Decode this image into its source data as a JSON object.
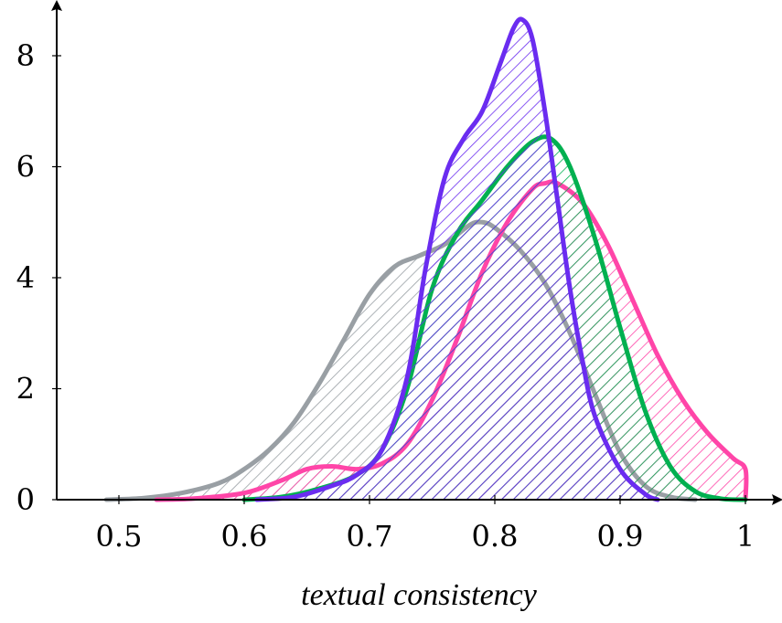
{
  "chart_data": {
    "type": "area",
    "title": "",
    "xlabel": "textual consistency",
    "ylabel": "",
    "xlim": [
      0.45,
      1.03
    ],
    "ylim": [
      0,
      8.9
    ],
    "x_ticks": [
      0.5,
      0.6,
      0.7,
      0.8,
      0.9,
      1.0
    ],
    "x_tick_labels": [
      "0.5",
      "0.6",
      "0.7",
      "0.8",
      "0.9",
      "1"
    ],
    "y_ticks": [
      0,
      2,
      4,
      6,
      8
    ],
    "y_tick_labels": [
      "0",
      "2",
      "4",
      "6",
      "8"
    ],
    "grid": false,
    "legend": "none",
    "series": [
      {
        "color": "#999fa4",
        "points": [
          [
            0.49,
            0
          ],
          [
            0.52,
            0.03
          ],
          [
            0.55,
            0.12
          ],
          [
            0.58,
            0.3
          ],
          [
            0.6,
            0.55
          ],
          [
            0.62,
            0.9
          ],
          [
            0.64,
            1.4
          ],
          [
            0.66,
            2.1
          ],
          [
            0.68,
            2.9
          ],
          [
            0.7,
            3.7
          ],
          [
            0.72,
            4.2
          ],
          [
            0.74,
            4.4
          ],
          [
            0.76,
            4.6
          ],
          [
            0.78,
            4.95
          ],
          [
            0.79,
            5.0
          ],
          [
            0.8,
            4.9
          ],
          [
            0.82,
            4.5
          ],
          [
            0.84,
            3.9
          ],
          [
            0.86,
            3.0
          ],
          [
            0.88,
            1.9
          ],
          [
            0.9,
            0.85
          ],
          [
            0.92,
            0.25
          ],
          [
            0.94,
            0.05
          ],
          [
            0.96,
            0
          ]
        ]
      },
      {
        "color": "#ff45a8",
        "points": [
          [
            0.53,
            0
          ],
          [
            0.56,
            0.02
          ],
          [
            0.6,
            0.12
          ],
          [
            0.63,
            0.35
          ],
          [
            0.65,
            0.55
          ],
          [
            0.67,
            0.6
          ],
          [
            0.69,
            0.55
          ],
          [
            0.71,
            0.65
          ],
          [
            0.73,
            1.0
          ],
          [
            0.75,
            1.8
          ],
          [
            0.77,
            2.9
          ],
          [
            0.79,
            4.1
          ],
          [
            0.81,
            5.0
          ],
          [
            0.83,
            5.6
          ],
          [
            0.84,
            5.7
          ],
          [
            0.85,
            5.7
          ],
          [
            0.87,
            5.35
          ],
          [
            0.89,
            4.6
          ],
          [
            0.91,
            3.6
          ],
          [
            0.93,
            2.6
          ],
          [
            0.95,
            1.8
          ],
          [
            0.97,
            1.2
          ],
          [
            0.99,
            0.75
          ],
          [
            1.0,
            0.55
          ],
          [
            1.0,
            0
          ]
        ]
      },
      {
        "color": "#00b050",
        "points": [
          [
            0.6,
            0
          ],
          [
            0.63,
            0.05
          ],
          [
            0.66,
            0.2
          ],
          [
            0.69,
            0.45
          ],
          [
            0.71,
            0.9
          ],
          [
            0.73,
            2.0
          ],
          [
            0.75,
            3.8
          ],
          [
            0.77,
            4.8
          ],
          [
            0.79,
            5.4
          ],
          [
            0.81,
            6.0
          ],
          [
            0.83,
            6.45
          ],
          [
            0.845,
            6.5
          ],
          [
            0.86,
            6.0
          ],
          [
            0.88,
            4.7
          ],
          [
            0.9,
            3.1
          ],
          [
            0.92,
            1.6
          ],
          [
            0.94,
            0.6
          ],
          [
            0.96,
            0.15
          ],
          [
            0.98,
            0.02
          ],
          [
            1.0,
            0
          ]
        ]
      },
      {
        "color": "#6a2cf0",
        "points": [
          [
            0.61,
            0
          ],
          [
            0.64,
            0.05
          ],
          [
            0.67,
            0.25
          ],
          [
            0.69,
            0.45
          ],
          [
            0.71,
            0.9
          ],
          [
            0.73,
            2.2
          ],
          [
            0.745,
            4.2
          ],
          [
            0.76,
            5.8
          ],
          [
            0.775,
            6.5
          ],
          [
            0.79,
            7.0
          ],
          [
            0.805,
            7.9
          ],
          [
            0.815,
            8.5
          ],
          [
            0.822,
            8.65
          ],
          [
            0.83,
            8.3
          ],
          [
            0.84,
            7.0
          ],
          [
            0.85,
            5.4
          ],
          [
            0.86,
            3.8
          ],
          [
            0.87,
            2.5
          ],
          [
            0.88,
            1.5
          ],
          [
            0.9,
            0.55
          ],
          [
            0.92,
            0.1
          ],
          [
            0.93,
            0
          ]
        ]
      }
    ]
  }
}
